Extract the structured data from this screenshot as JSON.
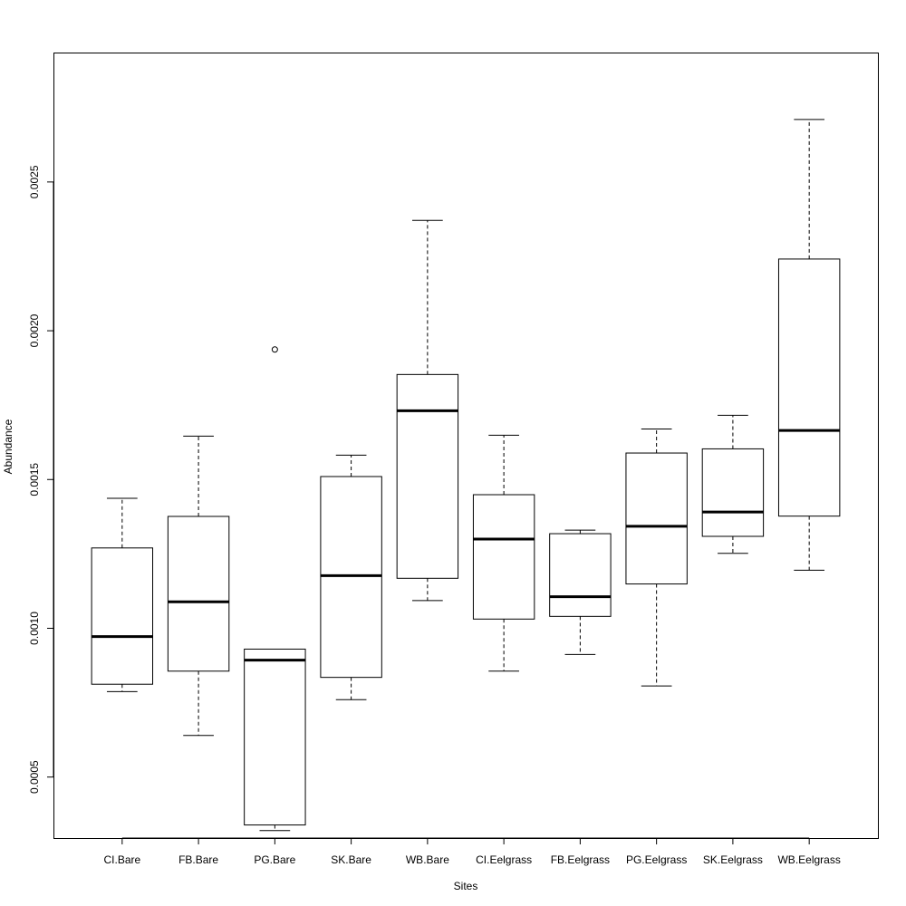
{
  "chart_data": {
    "type": "box",
    "title": "",
    "xlabel": "Sites",
    "ylabel": "Abundance",
    "ylim": [
      0.000295,
      0.002935
    ],
    "yticks": [
      0.0005,
      0.001,
      0.0015,
      0.002,
      0.0025
    ],
    "ytick_labels": [
      "0.0005",
      "0.0010",
      "0.0015",
      "0.0020",
      "0.0025"
    ],
    "grid": false,
    "legend": "none",
    "colors": {
      "stroke": "#000000",
      "fill": "#ffffff",
      "background": "#ffffff"
    },
    "categories": [
      "CI.Bare",
      "FB.Bare",
      "PG.Bare",
      "SK.Bare",
      "WB.Bare",
      "CI.Eelgrass",
      "FB.Eelgrass",
      "PG.Eelgrass",
      "SK.Eelgrass",
      "WB.Eelgrass"
    ],
    "boxes": [
      {
        "label": "CI.Bare",
        "whisker_low": 0.000787,
        "q1": 0.000812,
        "median": 0.000972,
        "q3": 0.00127,
        "whisker_high": 0.001437,
        "outliers": []
      },
      {
        "label": "FB.Bare",
        "whisker_low": 0.00064,
        "q1": 0.000856,
        "median": 0.001089,
        "q3": 0.001376,
        "whisker_high": 0.001646,
        "outliers": []
      },
      {
        "label": "PG.Bare",
        "whisker_low": 0.00032,
        "q1": 0.000339,
        "median": 0.000893,
        "q3": 0.00093,
        "whisker_high": 0.00093,
        "outliers": [
          0.001937
        ]
      },
      {
        "label": "SK.Bare",
        "whisker_low": 0.00076,
        "q1": 0.000835,
        "median": 0.001177,
        "q3": 0.00151,
        "whisker_high": 0.001582,
        "outliers": []
      },
      {
        "label": "WB.Bare",
        "whisker_low": 0.001093,
        "q1": 0.001168,
        "median": 0.001731,
        "q3": 0.001853,
        "whisker_high": 0.002371,
        "outliers": []
      },
      {
        "label": "CI.Eelgrass",
        "whisker_low": 0.000856,
        "q1": 0.001031,
        "median": 0.0013,
        "q3": 0.001449,
        "whisker_high": 0.001649,
        "outliers": []
      },
      {
        "label": "FB.Eelgrass",
        "whisker_low": 0.000912,
        "q1": 0.00104,
        "median": 0.001106,
        "q3": 0.001318,
        "whisker_high": 0.00133,
        "outliers": []
      },
      {
        "label": "PG.Eelgrass",
        "whisker_low": 0.000806,
        "q1": 0.001149,
        "median": 0.001343,
        "q3": 0.001589,
        "whisker_high": 0.00167,
        "outliers": []
      },
      {
        "label": "SK.Eelgrass",
        "whisker_low": 0.001252,
        "q1": 0.001309,
        "median": 0.001391,
        "q3": 0.001603,
        "whisker_high": 0.001716,
        "outliers": []
      },
      {
        "label": "WB.Eelgrass",
        "whisker_low": 0.001195,
        "q1": 0.001377,
        "median": 0.001665,
        "q3": 0.002241,
        "whisker_high": 0.00271,
        "outliers": []
      }
    ]
  }
}
